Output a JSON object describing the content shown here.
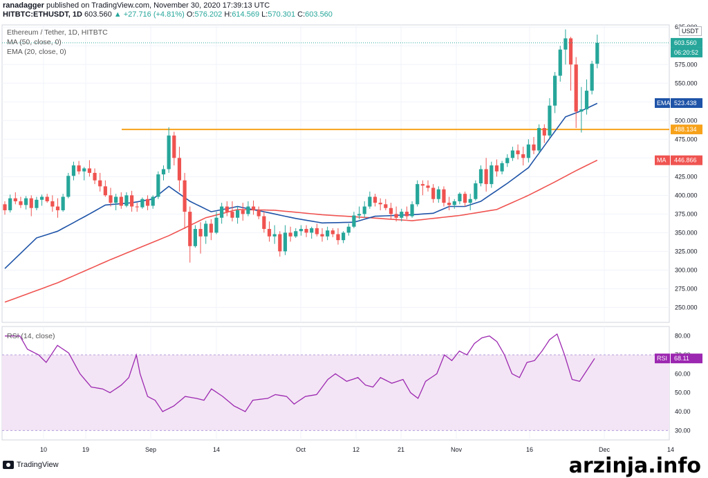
{
  "header": {
    "line1_user": "ranadagger",
    "line1_rest": "published on TradingView.com, November 30, 2020 17:39:13 UTC",
    "symbol": "HITBTC:ETHUSDT, 1D",
    "last": "603.560",
    "change": "▲ +27.716 (+4.81%)",
    "o_label": "O:",
    "o": "576.202",
    "h_label": "H:",
    "h": "614.569",
    "l_label": "L:",
    "l": "570.301",
    "c_label": "C:",
    "c": "603.560"
  },
  "legend": {
    "title": "Ethereum / Tether, 1D, HITBTC",
    "ma": "MA (50, close, 0)",
    "ema": "EMA (20, close, 0)",
    "rsi": "RSI (14, close)"
  },
  "currency": "USDT",
  "footer": {
    "brand": "TradingView"
  },
  "watermark": "arzinja.info",
  "colors": {
    "up": "#26a69a",
    "down": "#ef5350",
    "ema": "#1e53a7",
    "ma": "#ef5350",
    "support": "#f7a21b",
    "rsi": "#9c27b0",
    "rsi_fill": "#f3e5f5"
  },
  "chart_data": [
    {
      "type": "candlestick",
      "title": "Ethereum / Tether, 1D, HITBTC",
      "ylim": [
        230,
        628
      ],
      "y_ticks": [
        250,
        275,
        300,
        325,
        350,
        375,
        400,
        425,
        450,
        475,
        500,
        525,
        550,
        575,
        600,
        625
      ],
      "x_ticks": [
        "10",
        "19",
        "Sep",
        "14",
        "Oct",
        "12",
        "21",
        "Nov",
        "16",
        "Dec",
        "14"
      ],
      "price_labels": [
        {
          "name": "last",
          "value": "603.560"
        },
        {
          "name": "countdown",
          "value": "06:20:52"
        },
        {
          "name": "EMA",
          "value": "523.438"
        },
        {
          "name": "support",
          "value": "488.134"
        },
        {
          "name": "MA",
          "value": "446.866"
        }
      ],
      "support_level": 488.134,
      "candles": [
        [
          388,
          392,
          374,
          380
        ],
        [
          380,
          401,
          377,
          396
        ],
        [
          396,
          404,
          388,
          392
        ],
        [
          392,
          398,
          383,
          387
        ],
        [
          387,
          399,
          381,
          396
        ],
        [
          396,
          400,
          372,
          383
        ],
        [
          383,
          398,
          380,
          394
        ],
        [
          394,
          401,
          386,
          398
        ],
        [
          398,
          402,
          390,
          392
        ],
        [
          392,
          400,
          378,
          385
        ],
        [
          385,
          396,
          370,
          380
        ],
        [
          380,
          402,
          378,
          398
        ],
        [
          398,
          430,
          396,
          426
        ],
        [
          426,
          445,
          420,
          440
        ],
        [
          440,
          446,
          428,
          432
        ],
        [
          432,
          438,
          420,
          436
        ],
        [
          436,
          447,
          425,
          430
        ],
        [
          430,
          436,
          415,
          420
        ],
        [
          420,
          430,
          405,
          412
        ],
        [
          412,
          420,
          398,
          400
        ],
        [
          400,
          410,
          385,
          390
        ],
        [
          390,
          402,
          380,
          398
        ],
        [
          398,
          404,
          382,
          386
        ],
        [
          386,
          404,
          384,
          400
        ],
        [
          400,
          406,
          378,
          385
        ],
        [
          385,
          390,
          378,
          384
        ],
        [
          384,
          397,
          382,
          395
        ],
        [
          395,
          400,
          380,
          386
        ],
        [
          386,
          400,
          382,
          398
        ],
        [
          398,
          432,
          395,
          428
        ],
        [
          428,
          440,
          420,
          435
        ],
        [
          435,
          491,
          430,
          480
        ],
        [
          480,
          485,
          440,
          450
        ],
        [
          450,
          465,
          405,
          420
        ],
        [
          420,
          430,
          355,
          378
        ],
        [
          378,
          385,
          310,
          332
        ],
        [
          332,
          360,
          330,
          355
        ],
        [
          355,
          364,
          322,
          345
        ],
        [
          345,
          366,
          335,
          362
        ],
        [
          362,
          368,
          340,
          350
        ],
        [
          350,
          378,
          348,
          370
        ],
        [
          370,
          390,
          362,
          385
        ],
        [
          385,
          392,
          372,
          378
        ],
        [
          378,
          392,
          365,
          370
        ],
        [
          370,
          385,
          362,
          380
        ],
        [
          380,
          390,
          366,
          375
        ],
        [
          375,
          392,
          372,
          385
        ],
        [
          385,
          393,
          374,
          380
        ],
        [
          380,
          385,
          368,
          372
        ],
        [
          372,
          378,
          350,
          355
        ],
        [
          355,
          365,
          338,
          345
        ],
        [
          345,
          360,
          335,
          348
        ],
        [
          348,
          352,
          318,
          325
        ],
        [
          325,
          360,
          320,
          350
        ],
        [
          350,
          358,
          338,
          345
        ],
        [
          345,
          356,
          343,
          352
        ],
        [
          352,
          360,
          346,
          355
        ],
        [
          355,
          360,
          344,
          350
        ],
        [
          350,
          358,
          342,
          356
        ],
        [
          356,
          362,
          345,
          348
        ],
        [
          348,
          356,
          338,
          345
        ],
        [
          345,
          358,
          340,
          353
        ],
        [
          353,
          356,
          344,
          348
        ],
        [
          348,
          356,
          334,
          340
        ],
        [
          340,
          352,
          336,
          350
        ],
        [
          350,
          362,
          346,
          358
        ],
        [
          358,
          378,
          356,
          373
        ],
        [
          373,
          385,
          368,
          375
        ],
        [
          375,
          392,
          370,
          385
        ],
        [
          385,
          405,
          382,
          398
        ],
        [
          398,
          402,
          385,
          390
        ],
        [
          390,
          396,
          380,
          388
        ],
        [
          388,
          395,
          380,
          383
        ],
        [
          383,
          390,
          368,
          375
        ],
        [
          375,
          385,
          365,
          370
        ],
        [
          370,
          382,
          365,
          378
        ],
        [
          378,
          385,
          368,
          372
        ],
        [
          372,
          392,
          370,
          388
        ],
        [
          388,
          420,
          385,
          415
        ],
        [
          415,
          420,
          400,
          413
        ],
        [
          413,
          420,
          405,
          410
        ],
        [
          410,
          415,
          390,
          395
        ],
        [
          395,
          412,
          390,
          408
        ],
        [
          408,
          412,
          385,
          390
        ],
        [
          390,
          398,
          380,
          387
        ],
        [
          387,
          395,
          382,
          392
        ],
        [
          392,
          404,
          388,
          402
        ],
        [
          402,
          405,
          385,
          390
        ],
        [
          390,
          402,
          380,
          395
        ],
        [
          395,
          420,
          393,
          416
        ],
        [
          416,
          440,
          412,
          435
        ],
        [
          435,
          450,
          405,
          415
        ],
        [
          415,
          445,
          410,
          440
        ],
        [
          440,
          448,
          425,
          432
        ],
        [
          432,
          446,
          428,
          443
        ],
        [
          443,
          455,
          438,
          450
        ],
        [
          450,
          465,
          446,
          460
        ],
        [
          460,
          468,
          448,
          455
        ],
        [
          455,
          465,
          440,
          450
        ],
        [
          450,
          475,
          444,
          468
        ],
        [
          468,
          478,
          455,
          460
        ],
        [
          460,
          495,
          455,
          490
        ],
        [
          490,
          495,
          470,
          480
        ],
        [
          480,
          530,
          476,
          520
        ],
        [
          520,
          565,
          510,
          560
        ],
        [
          560,
          600,
          552,
          595
        ],
        [
          595,
          622,
          575,
          610
        ],
        [
          610,
          612,
          540,
          575
        ],
        [
          575,
          585,
          490,
          512
        ],
        [
          512,
          545,
          484,
          515
        ],
        [
          515,
          555,
          508,
          540
        ],
        [
          540,
          580,
          535,
          576
        ],
        [
          576,
          615,
          570,
          604
        ]
      ],
      "ema20_key": [
        [
          0,
          302
        ],
        [
          6,
          343
        ],
        [
          10,
          352
        ],
        [
          16,
          375
        ],
        [
          19,
          387
        ],
        [
          24,
          390
        ],
        [
          28,
          395
        ],
        [
          31,
          412
        ],
        [
          35,
          392
        ],
        [
          39,
          378
        ],
        [
          44,
          385
        ],
        [
          49,
          378
        ],
        [
          55,
          369
        ],
        [
          60,
          363
        ],
        [
          66,
          364
        ],
        [
          70,
          372
        ],
        [
          77,
          374
        ],
        [
          81,
          376
        ],
        [
          84,
          385
        ],
        [
          87,
          385
        ],
        [
          90,
          392
        ],
        [
          95,
          416
        ],
        [
          99,
          437
        ],
        [
          103,
          476
        ],
        [
          106,
          505
        ],
        [
          109,
          513
        ],
        [
          112,
          523
        ]
      ],
      "ma50_key": [
        [
          0,
          257
        ],
        [
          10,
          283
        ],
        [
          20,
          314
        ],
        [
          31,
          346
        ],
        [
          38,
          370
        ],
        [
          44,
          381
        ],
        [
          51,
          380
        ],
        [
          60,
          374
        ],
        [
          69,
          370
        ],
        [
          77,
          366
        ],
        [
          86,
          373
        ],
        [
          93,
          381
        ],
        [
          99,
          400
        ],
        [
          104,
          418
        ],
        [
          108,
          433
        ],
        [
          112,
          447
        ]
      ]
    },
    {
      "type": "line",
      "title": "RSI (14, close)",
      "ylim": [
        25,
        85
      ],
      "y_ticks": [
        30,
        40,
        50,
        60,
        70,
        80
      ],
      "band": [
        30,
        70
      ],
      "last_label": "68.11",
      "last_value": 68.11,
      "values_key": [
        [
          0,
          80
        ],
        [
          4,
          80
        ],
        [
          6,
          73
        ],
        [
          9,
          70
        ],
        [
          11,
          66
        ],
        [
          14,
          75
        ],
        [
          17,
          71
        ],
        [
          20,
          60
        ],
        [
          23,
          53
        ],
        [
          26,
          52
        ],
        [
          28,
          50
        ],
        [
          31,
          54
        ],
        [
          33,
          58
        ],
        [
          35,
          70
        ],
        [
          36,
          60
        ],
        [
          38,
          48
        ],
        [
          40,
          46
        ],
        [
          42,
          40
        ],
        [
          45,
          43
        ],
        [
          48,
          48
        ],
        [
          51,
          47
        ],
        [
          53,
          46
        ],
        [
          55,
          52
        ],
        [
          58,
          48
        ],
        [
          61,
          43
        ],
        [
          64,
          40
        ],
        [
          66,
          46
        ],
        [
          70,
          47
        ],
        [
          72,
          49
        ],
        [
          75,
          48
        ],
        [
          77,
          44
        ],
        [
          80,
          48
        ],
        [
          83,
          49
        ],
        [
          86,
          57
        ],
        [
          88,
          60
        ],
        [
          91,
          56
        ],
        [
          94,
          58
        ],
        [
          96,
          54
        ],
        [
          98,
          53
        ],
        [
          100,
          58
        ],
        [
          103,
          55
        ],
        [
          106,
          57
        ],
        [
          108,
          50
        ],
        [
          110,
          47
        ],
        [
          112,
          56
        ],
        [
          115,
          60
        ],
        [
          117,
          70
        ],
        [
          119,
          67
        ],
        [
          121,
          72
        ],
        [
          123,
          70
        ],
        [
          125,
          76
        ],
        [
          127,
          79
        ],
        [
          129,
          80
        ],
        [
          131,
          77
        ],
        [
          133,
          70
        ],
        [
          135,
          60
        ],
        [
          137,
          58
        ],
        [
          139,
          66
        ],
        [
          141,
          67
        ],
        [
          143,
          72
        ],
        [
          145,
          78
        ],
        [
          147,
          81
        ],
        [
          149,
          70
        ],
        [
          151,
          57
        ],
        [
          153,
          56
        ],
        [
          155,
          62
        ],
        [
          157,
          68.11
        ]
      ]
    }
  ]
}
